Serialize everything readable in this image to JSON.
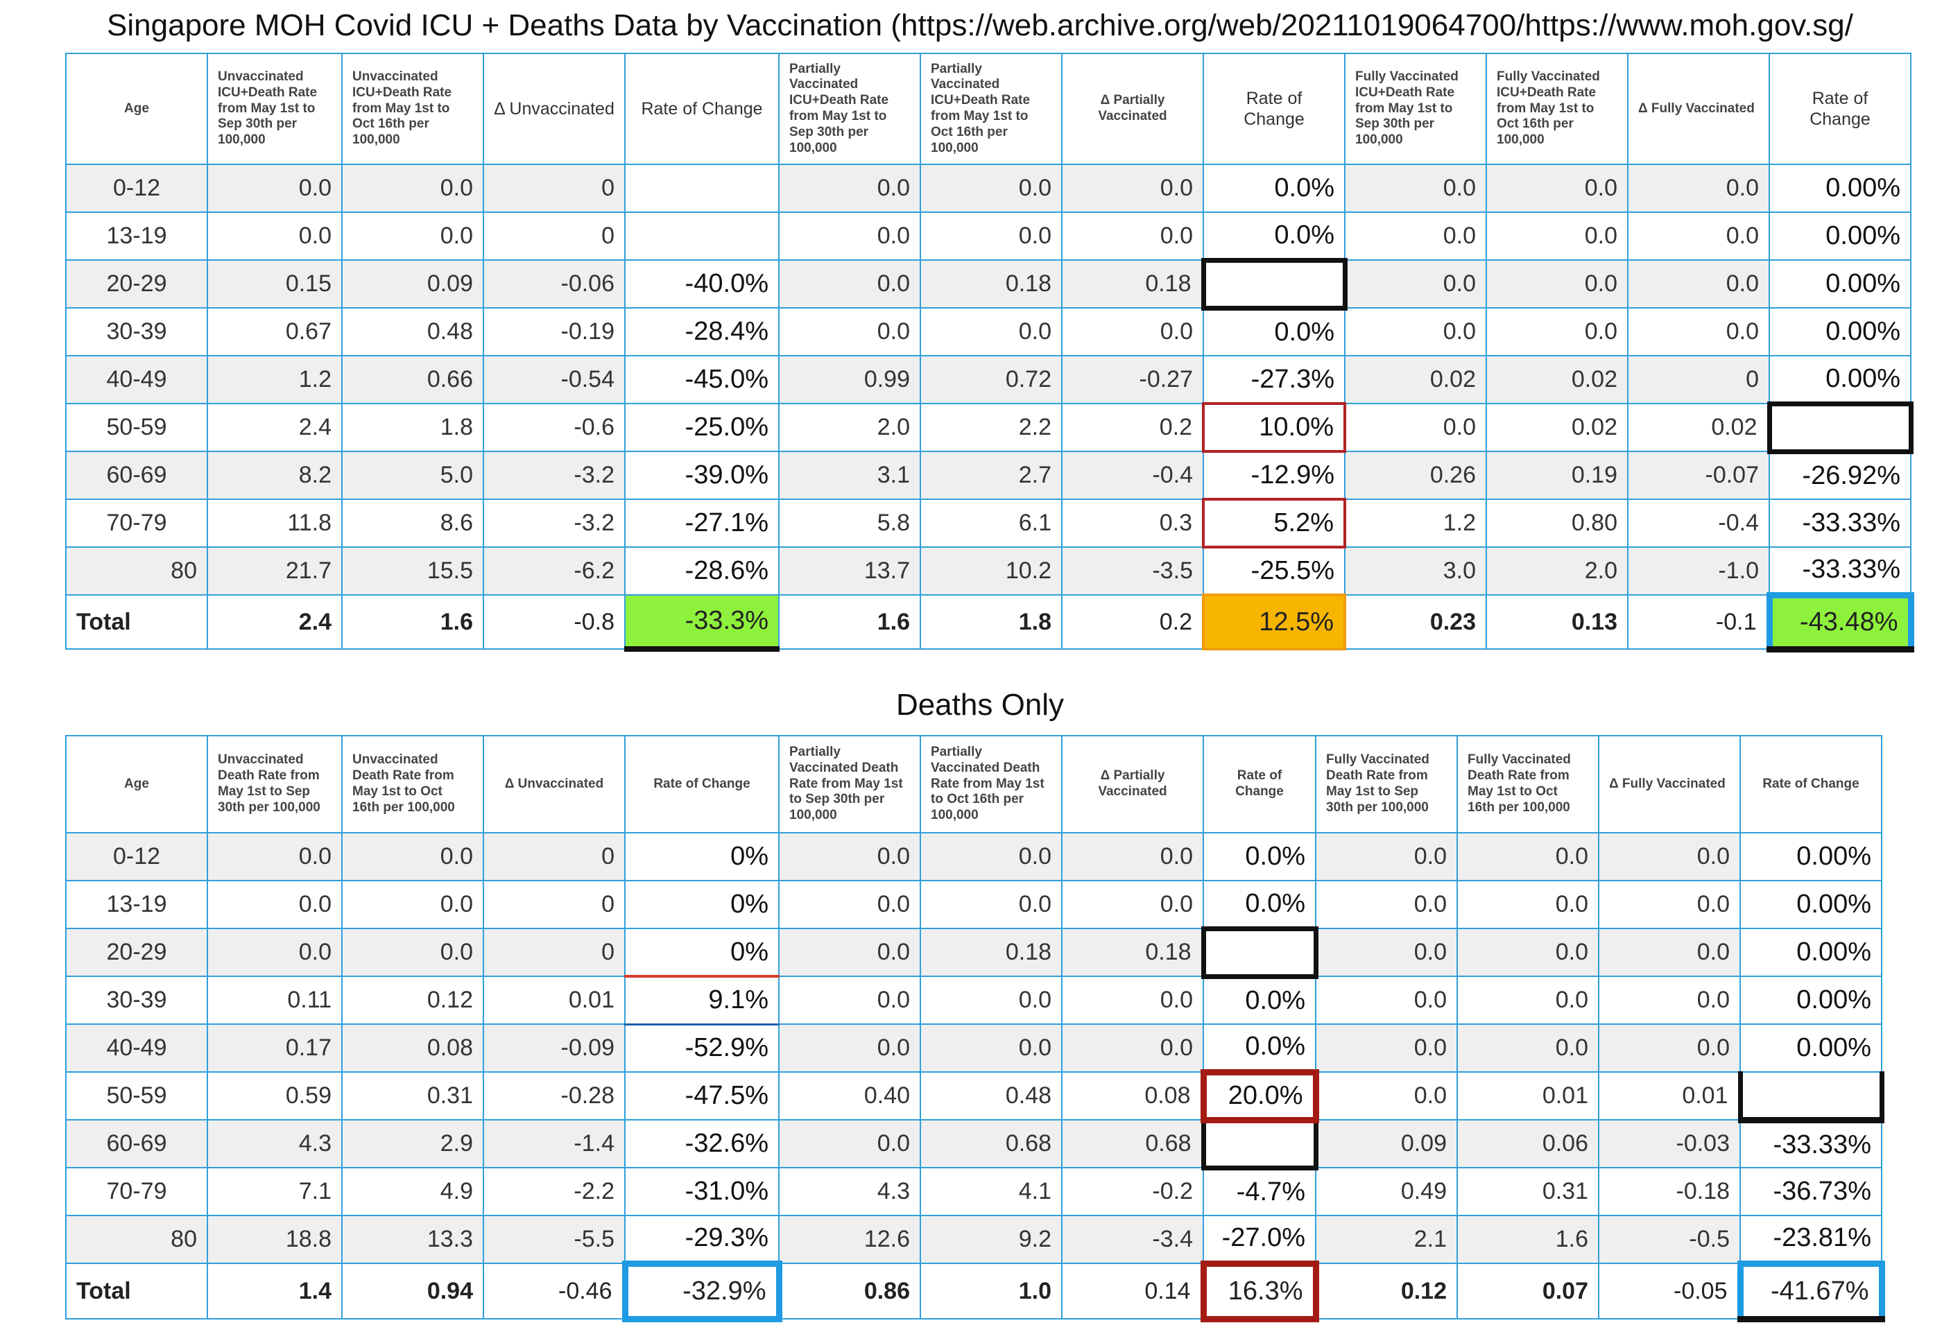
{
  "title": "Singapore MOH Covid ICU + Deaths Data by Vaccination (https://web.archive.org/web/20211019064700/https://www.moh.gov.sg/",
  "icu_table": {
    "headers": [
      "Age",
      "Unvaccinated ICU+Death Rate from May 1st to Sep 30th per 100,000",
      "Unvaccinated ICU+Death Rate from May 1st to Oct 16th per 100,000",
      "Δ Unvaccinated",
      "Rate of Change",
      "Partially Vaccinated ICU+Death Rate from May 1st to Sep 30th per 100,000",
      "Partially Vaccinated ICU+Death Rate from May 1st to Oct 16th per 100,000",
      "Δ Partially Vaccinated",
      "Rate of Change",
      "Fully Vaccinated ICU+Death Rate from May 1st to Sep 30th per 100,000",
      "Fully Vaccinated ICU+Death Rate from May 1st to Oct 16th per 100,000",
      "Δ Fully Vaccinated",
      "Rate of Change"
    ],
    "rows": [
      [
        "0-12",
        "0.0",
        "0.0",
        "0",
        "",
        "0.0",
        "0.0",
        "0.0",
        "0.0%",
        "0.0",
        "0.0",
        "0.0",
        "0.00%"
      ],
      [
        "13-19",
        "0.0",
        "0.0",
        "0",
        "",
        "0.0",
        "0.0",
        "0.0",
        "0.0%",
        "0.0",
        "0.0",
        "0.0",
        "0.00%"
      ],
      [
        "20-29",
        "0.15",
        "0.09",
        "-0.06",
        "-40.0%",
        "0.0",
        "0.18",
        "0.18",
        "",
        "0.0",
        "0.0",
        "0.0",
        "0.00%"
      ],
      [
        "30-39",
        "0.67",
        "0.48",
        "-0.19",
        "-28.4%",
        "0.0",
        "0.0",
        "0.0",
        "0.0%",
        "0.0",
        "0.0",
        "0.0",
        "0.00%"
      ],
      [
        "40-49",
        "1.2",
        "0.66",
        "-0.54",
        "-45.0%",
        "0.99",
        "0.72",
        "-0.27",
        "-27.3%",
        "0.02",
        "0.02",
        "0",
        "0.00%"
      ],
      [
        "50-59",
        "2.4",
        "1.8",
        "-0.6",
        "-25.0%",
        "2.0",
        "2.2",
        "0.2",
        "10.0%",
        "0.0",
        "0.02",
        "0.02",
        ""
      ],
      [
        "60-69",
        "8.2",
        "5.0",
        "-3.2",
        "-39.0%",
        "3.1",
        "2.7",
        "-0.4",
        "-12.9%",
        "0.26",
        "0.19",
        "-0.07",
        "-26.92%"
      ],
      [
        "70-79",
        "11.8",
        "8.6",
        "-3.2",
        "-27.1%",
        "5.8",
        "6.1",
        "0.3",
        "5.2%",
        "1.2",
        "0.80",
        "-0.4",
        "-33.33%"
      ],
      [
        "80",
        "21.7",
        "15.5",
        "-6.2",
        "-28.6%",
        "13.7",
        "10.2",
        "-3.5",
        "-25.5%",
        "3.0",
        "2.0",
        "-1.0",
        "-33.33%"
      ],
      [
        "Total",
        "2.4",
        "1.6",
        "-0.8",
        "-33.3%",
        "1.6",
        "1.8",
        "0.2",
        "12.5%",
        "0.23",
        "0.13",
        "-0.1",
        "-43.48%"
      ]
    ]
  },
  "deaths_title": "Deaths Only",
  "deaths_table": {
    "headers": [
      "Age",
      "Unvaccinated Death Rate from May 1st to Sep 30th per 100,000",
      "Unvaccinated Death Rate from May 1st to Oct 16th per 100,000",
      "Δ Unvaccinated",
      "Rate of Change",
      "Partially Vaccinated Death Rate from May 1st to Sep 30th per 100,000",
      "Partially Vaccinated Death Rate from May 1st to Oct 16th per 100,000",
      "Δ Partially Vaccinated",
      "Rate of Change",
      "Fully Vaccinated Death Rate from May 1st to Sep 30th per 100,000",
      "Fully Vaccinated Death Rate from May 1st to Oct 16th per 100,000",
      "Δ Fully Vaccinated",
      "Rate of Change"
    ],
    "rows": [
      [
        "0-12",
        "0.0",
        "0.0",
        "0",
        "0%",
        "0.0",
        "0.0",
        "0.0",
        "0.0%",
        "0.0",
        "0.0",
        "0.0",
        "0.00%"
      ],
      [
        "13-19",
        "0.0",
        "0.0",
        "0",
        "0%",
        "0.0",
        "0.0",
        "0.0",
        "0.0%",
        "0.0",
        "0.0",
        "0.0",
        "0.00%"
      ],
      [
        "20-29",
        "0.0",
        "0.0",
        "0",
        "0%",
        "0.0",
        "0.18",
        "0.18",
        "",
        "0.0",
        "0.0",
        "0.0",
        "0.00%"
      ],
      [
        "30-39",
        "0.11",
        "0.12",
        "0.01",
        "9.1%",
        "0.0",
        "0.0",
        "0.0",
        "0.0%",
        "0.0",
        "0.0",
        "0.0",
        "0.00%"
      ],
      [
        "40-49",
        "0.17",
        "0.08",
        "-0.09",
        "-52.9%",
        "0.0",
        "0.0",
        "0.0",
        "0.0%",
        "0.0",
        "0.0",
        "0.0",
        "0.00%"
      ],
      [
        "50-59",
        "0.59",
        "0.31",
        "-0.28",
        "-47.5%",
        "0.40",
        "0.48",
        "0.08",
        "20.0%",
        "0.0",
        "0.01",
        "0.01",
        ""
      ],
      [
        "60-69",
        "4.3",
        "2.9",
        "-1.4",
        "-32.6%",
        "0.0",
        "0.68",
        "0.68",
        "",
        "0.09",
        "0.06",
        "-0.03",
        "-33.33%"
      ],
      [
        "70-79",
        "7.1",
        "4.9",
        "-2.2",
        "-31.0%",
        "4.3",
        "4.1",
        "-0.2",
        "-4.7%",
        "0.49",
        "0.31",
        "-0.18",
        "-36.73%"
      ],
      [
        "80",
        "18.8",
        "13.3",
        "-5.5",
        "-29.3%",
        "12.6",
        "9.2",
        "-3.4",
        "-27.0%",
        "2.1",
        "1.6",
        "-0.5",
        "-23.81%"
      ],
      [
        "Total",
        "1.4",
        "0.94",
        "-0.46",
        "-32.9%",
        "0.86",
        "1.0",
        "0.14",
        "16.3%",
        "0.12",
        "0.07",
        "-0.05",
        "-41.67%"
      ]
    ]
  },
  "highlights": {
    "border_blue": "#2fa0dc",
    "stripe": "#efefef",
    "green": "#8ef23c",
    "orange": "#f7b500",
    "red": "#b22222",
    "black": "#111111",
    "accent_blue": "#1e9be3"
  }
}
